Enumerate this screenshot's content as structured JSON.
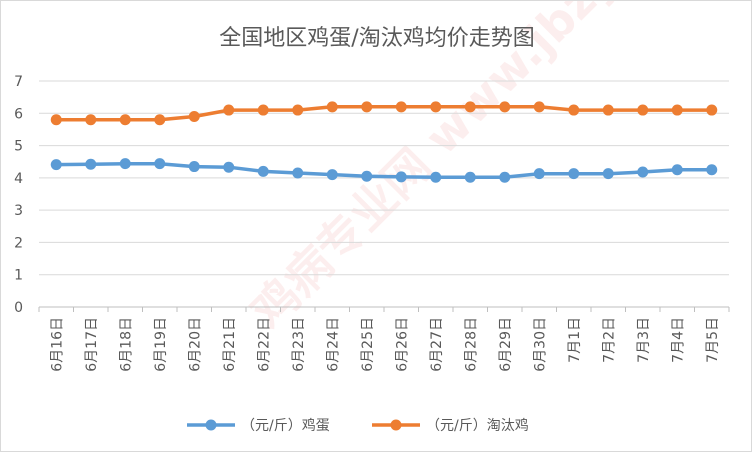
{
  "chart_data": {
    "type": "line",
    "title": "全国地区鸡蛋/淘汰鸡均价走势图",
    "categories": [
      "6月16日",
      "6月17日",
      "6月18日",
      "6月19日",
      "6月20日",
      "6月21日",
      "6月22日",
      "6月23日",
      "6月24日",
      "6月25日",
      "6月26日",
      "6月27日",
      "6月28日",
      "6月29日",
      "6月30日",
      "7月1日",
      "7月2日",
      "7月3日",
      "7月4日",
      "7月5日"
    ],
    "yticks": [
      "0",
      "1",
      "2",
      "3",
      "4",
      "5",
      "6",
      "7"
    ],
    "ylim": [
      0,
      7
    ],
    "grid": true,
    "legend_position": "bottom",
    "series": [
      {
        "name": "（元/斤）鸡蛋",
        "color": "#5b9bd5",
        "values": [
          4.41,
          4.42,
          4.44,
          4.44,
          4.35,
          4.33,
          4.2,
          4.15,
          4.1,
          4.05,
          4.03,
          4.02,
          4.02,
          4.02,
          4.13,
          4.13,
          4.13,
          4.18,
          4.25,
          4.25
        ]
      },
      {
        "name": "（元/斤）淘汰鸡",
        "color": "#ed7d31",
        "values": [
          5.8,
          5.8,
          5.8,
          5.8,
          5.9,
          6.1,
          6.1,
          6.1,
          6.2,
          6.2,
          6.2,
          6.2,
          6.2,
          6.2,
          6.2,
          6.1,
          6.1,
          6.1,
          6.1,
          6.1
        ]
      }
    ]
  },
  "watermark": {
    "text": "鸡病专业网 www.jbzyw.com",
    "color": "#e53935"
  }
}
